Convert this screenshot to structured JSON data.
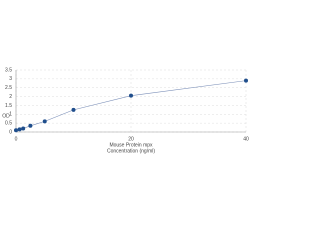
{
  "chart_data": {
    "type": "scatter",
    "xlabel": [
      "Mouse Protein mpx",
      "Concentration (ng/ml)"
    ],
    "ylabel": "OD",
    "x": [
      0,
      0.625,
      1.25,
      2.5,
      5,
      10,
      20,
      40
    ],
    "series": [
      {
        "name": "OD",
        "color": "#1f4e8c",
        "values": [
          0.1,
          0.15,
          0.2,
          0.35,
          0.6,
          1.25,
          2.05,
          2.9
        ]
      }
    ],
    "xlim": [
      0,
      40
    ],
    "xticks": [
      0,
      20,
      40
    ],
    "ylim": [
      0,
      3.5
    ],
    "yticks": [
      0,
      0.5,
      1,
      1.5,
      2,
      2.5,
      3,
      3.5
    ],
    "grid": true,
    "line_color": "#7b8fb8"
  }
}
